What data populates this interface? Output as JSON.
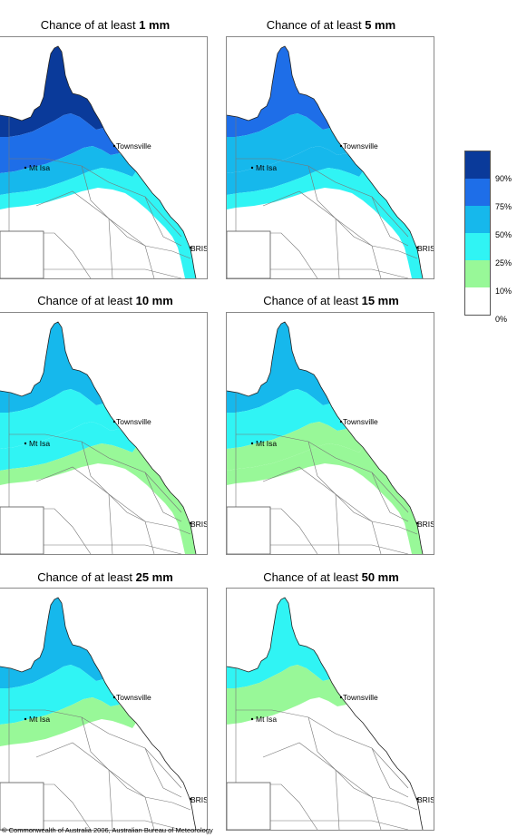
{
  "title_prefix": "Chance of at least",
  "panels": [
    {
      "threshold": "1 mm",
      "levels": [
        5,
        4,
        3,
        2,
        1
      ]
    },
    {
      "threshold": "5 mm",
      "levels": [
        4,
        3,
        3,
        2,
        1
      ]
    },
    {
      "threshold": "10 mm",
      "levels": [
        3,
        2,
        2,
        1,
        1
      ]
    },
    {
      "threshold": "15 mm",
      "levels": [
        3,
        2,
        1,
        1,
        0
      ]
    },
    {
      "threshold": "25 mm",
      "levels": [
        3,
        2,
        1,
        0,
        0
      ]
    },
    {
      "threshold": "50 mm",
      "levels": [
        2,
        1,
        0,
        0,
        0
      ]
    }
  ],
  "towns": {
    "townsville": "Townsville",
    "mt_isa": "Mt Isa",
    "brisbane": "BRIS"
  },
  "legend": {
    "colors": [
      "#0a3a9a",
      "#1e6ee8",
      "#16b8ec",
      "#30f4f4",
      "#98f898",
      "#ffffff"
    ],
    "labels": [
      "90%",
      "75%",
      "50%",
      "25%",
      "10%",
      "0%"
    ]
  },
  "copyright": "© Commonwealth of Australia 2006, Australian Bureau of Meteorology"
}
